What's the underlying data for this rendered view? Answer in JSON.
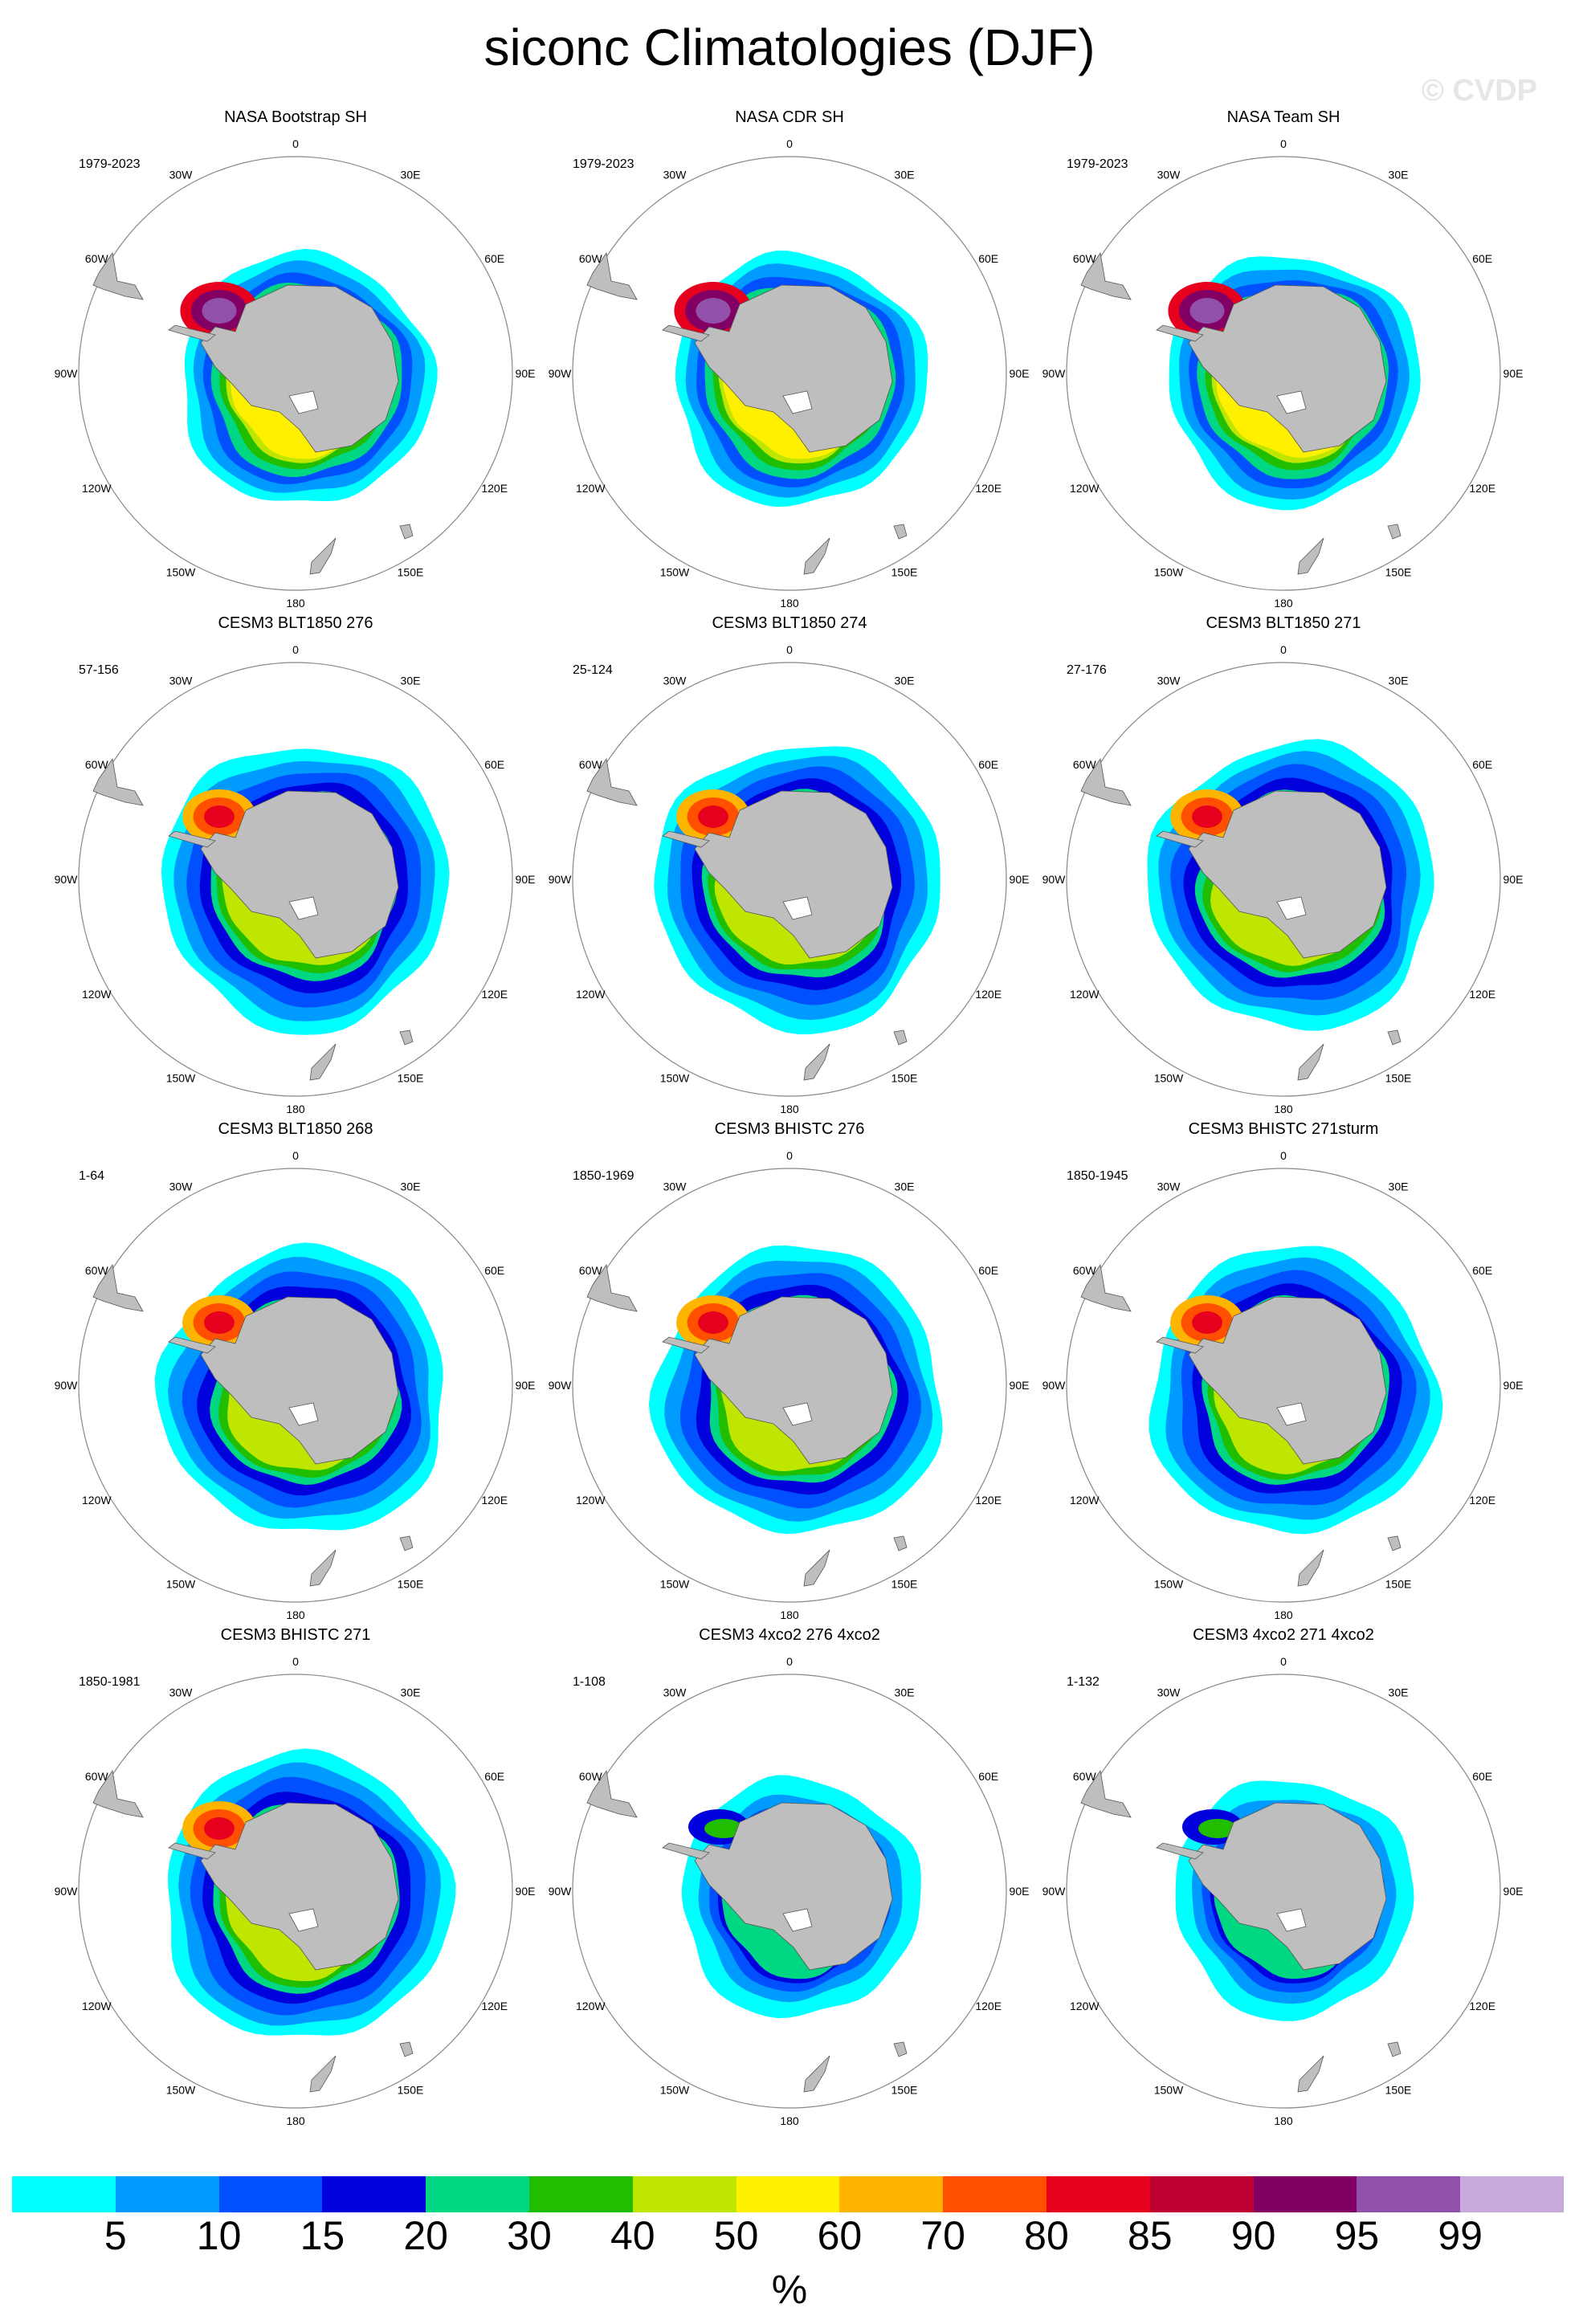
{
  "title": "siconc Climatologies (DJF)",
  "watermark": "© CVDP",
  "lon_labels": [
    "0",
    "30E",
    "60E",
    "90E",
    "120E",
    "150E",
    "180",
    "150W",
    "120W",
    "90W",
    "60W",
    "30W"
  ],
  "panels": [
    {
      "title": "NASA Bootstrap SH",
      "years": "1979-2023",
      "type": "obs",
      "fill": "full"
    },
    {
      "title": "NASA CDR SH",
      "years": "1979-2023",
      "type": "obs",
      "fill": "full"
    },
    {
      "title": "NASA Team SH",
      "years": "1979-2023",
      "type": "obs",
      "fill": "full"
    },
    {
      "title": "CESM3 BLT1850 276",
      "years": "57-156",
      "type": "model",
      "fill": "wide"
    },
    {
      "title": "CESM3 BLT1850 274",
      "years": "25-124",
      "type": "model",
      "fill": "wide"
    },
    {
      "title": "CESM3 BLT1850 271",
      "years": "27-176",
      "type": "model",
      "fill": "wide"
    },
    {
      "title": "CESM3 BLT1850 268",
      "years": "1-64",
      "type": "model",
      "fill": "wide"
    },
    {
      "title": "CESM3 BHISTC 276",
      "years": "1850-1969",
      "type": "model",
      "fill": "wide"
    },
    {
      "title": "CESM3 BHISTC 271sturm",
      "years": "1850-1945",
      "type": "model",
      "fill": "wide"
    },
    {
      "title": "CESM3 BHISTC 271",
      "years": "1850-1981",
      "type": "model",
      "fill": "wide"
    },
    {
      "title": "CESM3 4xco2 276 4xco2",
      "years": "1-108",
      "type": "4xco2",
      "fill": "reduced"
    },
    {
      "title": "CESM3 4xco2 271 4xco2",
      "years": "1-132",
      "type": "4xco2",
      "fill": "reduced"
    }
  ],
  "colorbar": {
    "colors": [
      "#00FFFF",
      "#009BFF",
      "#0050FF",
      "#0000DC",
      "#00D782",
      "#21BE00",
      "#BEE600",
      "#FFF000",
      "#FFB400",
      "#FF5000",
      "#E6001E",
      "#BE0032",
      "#820064",
      "#9150AA",
      "#C8AADC"
    ],
    "labels": [
      "5",
      "10",
      "15",
      "20",
      "30",
      "40",
      "50",
      "60",
      "70",
      "80",
      "85",
      "90",
      "95",
      "99"
    ],
    "units": "%"
  }
}
